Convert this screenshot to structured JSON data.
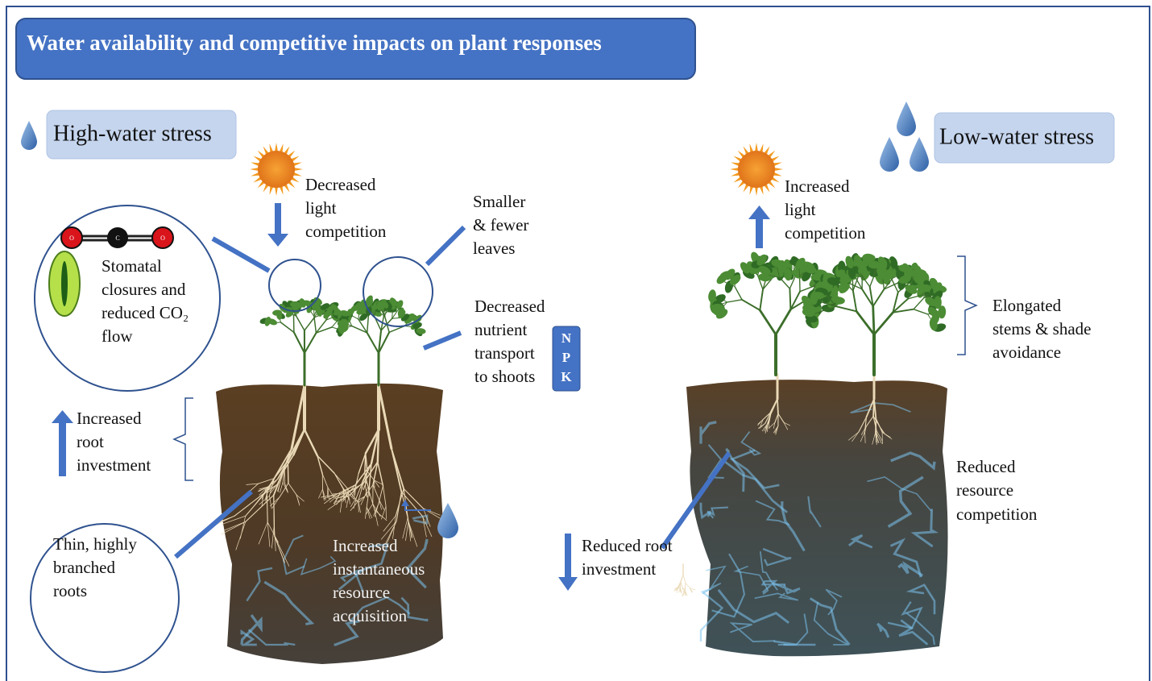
{
  "title": "Water availability and competitive impacts on plant responses",
  "high_water": {
    "label": "High-water stress",
    "light": [
      "Decreased",
      "light",
      "competition"
    ],
    "leaves": [
      "Smaller",
      "& fewer",
      "leaves"
    ],
    "stomata": [
      "Stomatal",
      "closures and",
      "reduced CO₂",
      "flow"
    ],
    "molecule": [
      "O",
      "C",
      "O"
    ],
    "nutrient": [
      "Decreased",
      "nutrient",
      "transport",
      "to shoots"
    ],
    "npk": [
      "N",
      "P",
      "K"
    ],
    "root_investment": [
      "Increased",
      "root",
      "investment"
    ],
    "roots": [
      "Thin, highly",
      "branched",
      "roots"
    ],
    "acquisition": [
      "Increased",
      "instantaneous",
      "resource",
      "acquisition"
    ]
  },
  "low_water": {
    "label": "Low-water stress",
    "light": [
      "Increased",
      "light",
      "competition"
    ],
    "stems": [
      "Elongated",
      "stems & shade",
      "avoidance"
    ],
    "competition": [
      "Reduced",
      "resource",
      "competition"
    ],
    "root_investment": [
      "Reduced root",
      "investment"
    ]
  }
}
